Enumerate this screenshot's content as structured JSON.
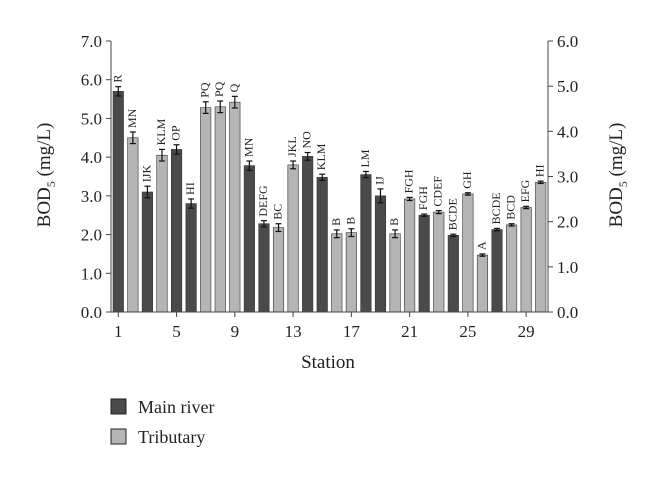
{
  "chart_data": {
    "type": "bar",
    "xlabel": "Station",
    "ylabel_left_main": "BOD",
    "ylabel_left_sub": "5",
    "ylabel_left_unit": " (mg/L)",
    "ylabel_right_main": "BOD",
    "ylabel_right_sub": "5",
    "ylabel_right_unit": " (mg/L)",
    "left_ylim": [
      0,
      7
    ],
    "right_ylim": [
      0,
      6
    ],
    "left_ticks": [
      "0.0",
      "1.0",
      "2.0",
      "3.0",
      "4.0",
      "5.0",
      "6.0",
      "7.0"
    ],
    "right_ticks": [
      "0.0",
      "1.0",
      "2.0",
      "3.0",
      "4.0",
      "5.0",
      "6.0"
    ],
    "x_tick_labels": [
      "1",
      "5",
      "9",
      "13",
      "17",
      "21",
      "25",
      "29"
    ],
    "x_tick_stations": [
      1,
      5,
      9,
      13,
      17,
      21,
      25,
      29
    ],
    "legend_position": "bottom-left",
    "grid": false,
    "colors": {
      "main_river": "#4a4a4a",
      "tributary": "#b5b5b5",
      "error_bar": "#111111"
    },
    "series": [
      {
        "name": "Main river",
        "key": "main_river"
      },
      {
        "name": "Tributary",
        "key": "tributary"
      }
    ],
    "stations": [
      {
        "station": 1,
        "value": 5.7,
        "error": 0.12,
        "sig": "R",
        "type": "main_river"
      },
      {
        "station": 2,
        "value": 4.5,
        "error": 0.15,
        "sig": "MN",
        "type": "tributary"
      },
      {
        "station": 3,
        "value": 3.1,
        "error": 0.15,
        "sig": "IJK",
        "type": "main_river"
      },
      {
        "station": 4,
        "value": 4.05,
        "error": 0.15,
        "sig": "KLM",
        "type": "tributary"
      },
      {
        "station": 5,
        "value": 4.2,
        "error": 0.12,
        "sig": "OP",
        "type": "main_river"
      },
      {
        "station": 6,
        "value": 2.8,
        "error": 0.12,
        "sig": "HI",
        "type": "main_river"
      },
      {
        "station": 7,
        "value": 5.28,
        "error": 0.15,
        "sig": "PQ",
        "type": "tributary"
      },
      {
        "station": 8,
        "value": 5.3,
        "error": 0.15,
        "sig": "PQ",
        "type": "tributary"
      },
      {
        "station": 9,
        "value": 5.42,
        "error": 0.15,
        "sig": "Q",
        "type": "tributary"
      },
      {
        "station": 10,
        "value": 3.78,
        "error": 0.12,
        "sig": "MN",
        "type": "main_river"
      },
      {
        "station": 11,
        "value": 2.28,
        "error": 0.08,
        "sig": "DEFG",
        "type": "main_river"
      },
      {
        "station": 12,
        "value": 2.18,
        "error": 0.1,
        "sig": "BC",
        "type": "tributary"
      },
      {
        "station": 13,
        "value": 3.8,
        "error": 0.1,
        "sig": "JKL",
        "type": "tributary"
      },
      {
        "station": 14,
        "value": 4.02,
        "error": 0.1,
        "sig": "NO",
        "type": "main_river"
      },
      {
        "station": 15,
        "value": 3.48,
        "error": 0.08,
        "sig": "KLM",
        "type": "main_river"
      },
      {
        "station": 16,
        "value": 2.02,
        "error": 0.1,
        "sig": "B",
        "type": "tributary"
      },
      {
        "station": 17,
        "value": 2.05,
        "error": 0.1,
        "sig": "B",
        "type": "tributary"
      },
      {
        "station": 18,
        "value": 3.55,
        "error": 0.08,
        "sig": "LM",
        "type": "main_river"
      },
      {
        "station": 19,
        "value": 3.0,
        "error": 0.18,
        "sig": "IJ",
        "type": "main_river"
      },
      {
        "station": 20,
        "value": 2.02,
        "error": 0.1,
        "sig": "B",
        "type": "tributary"
      },
      {
        "station": 21,
        "value": 2.92,
        "error": 0.04,
        "sig": "FGH",
        "type": "tributary"
      },
      {
        "station": 22,
        "value": 2.5,
        "error": 0.03,
        "sig": "FGH",
        "type": "main_river"
      },
      {
        "station": 23,
        "value": 2.58,
        "error": 0.04,
        "sig": "CDEF",
        "type": "tributary"
      },
      {
        "station": 24,
        "value": 1.98,
        "error": 0.03,
        "sig": "BCDE",
        "type": "main_river"
      },
      {
        "station": 25,
        "value": 3.05,
        "error": 0.03,
        "sig": "GH",
        "type": "tributary"
      },
      {
        "station": 26,
        "value": 1.47,
        "error": 0.03,
        "sig": "A",
        "type": "tributary"
      },
      {
        "station": 27,
        "value": 2.13,
        "error": 0.03,
        "sig": "BCDE",
        "type": "main_river"
      },
      {
        "station": 28,
        "value": 2.25,
        "error": 0.03,
        "sig": "BCD",
        "type": "tributary"
      },
      {
        "station": 29,
        "value": 2.7,
        "error": 0.03,
        "sig": "EFG",
        "type": "tributary"
      },
      {
        "station": 30,
        "value": 3.35,
        "error": 0.03,
        "sig": "HI",
        "type": "tributary"
      }
    ]
  }
}
